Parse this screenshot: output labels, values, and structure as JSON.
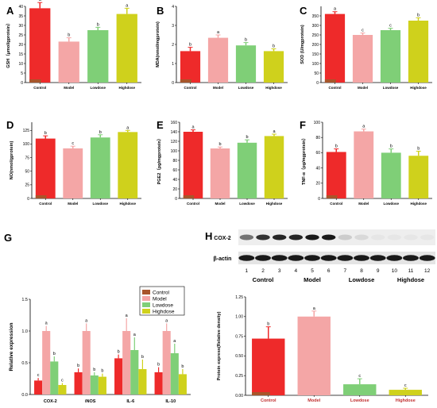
{
  "colors": {
    "Control": "#ee2a2a",
    "Model": "#f4a6a6",
    "Lowdose": "#7fcf77",
    "Highdose": "#cfd11c",
    "ControlDark": "#a8552a"
  },
  "chart_data": [
    {
      "id": "A",
      "type": "bar",
      "label": "A",
      "categories": [
        "Control",
        "Model",
        "Lowdose",
        "Highdose"
      ],
      "values": [
        39,
        21.5,
        27.5,
        36
      ],
      "errors": [
        3,
        2,
        1.5,
        3
      ],
      "letters": [
        "a",
        "b",
        "b",
        "a"
      ],
      "ylabel": "GSH（μmol/gprotein）",
      "ylim": [
        0,
        40
      ],
      "yticks": [
        0,
        5,
        10,
        15,
        20,
        25,
        30,
        35,
        40
      ]
    },
    {
      "id": "B",
      "type": "bar",
      "label": "B",
      "categories": [
        "Control",
        "Model",
        "Lowdose",
        "Highdose"
      ],
      "values": [
        1.65,
        2.35,
        1.95,
        1.65
      ],
      "errors": [
        0.2,
        0.15,
        0.15,
        0.12
      ],
      "letters": [
        "b",
        "a",
        "b",
        "b"
      ],
      "ylabel": "MDA(nmol/mgprotein)",
      "ylim": [
        0,
        4
      ],
      "yticks": [
        0,
        1,
        2,
        3,
        4
      ]
    },
    {
      "id": "C",
      "type": "bar",
      "label": "C",
      "categories": [
        "Control",
        "Model",
        "Lowdose",
        "Highdose"
      ],
      "values": [
        360,
        250,
        275,
        325
      ],
      "errors": [
        12,
        10,
        10,
        15
      ],
      "letters": [
        "a",
        "c",
        "c",
        "b"
      ],
      "ylabel": "SOD (U/mgprotein)",
      "ylim": [
        0,
        400
      ],
      "yticks": [
        0,
        50,
        100,
        150,
        200,
        250,
        300,
        350
      ]
    },
    {
      "id": "D",
      "type": "bar",
      "label": "D",
      "categories": [
        "Control",
        "Model",
        "Lowdose",
        "Highdose"
      ],
      "values": [
        110,
        92,
        112,
        122
      ],
      "errors": [
        5,
        4,
        5,
        3
      ],
      "letters": [
        "b",
        "c",
        "b",
        "a"
      ],
      "ylabel": "NO(nmol/gprotein)",
      "ylim": [
        0,
        140
      ],
      "yticks": [
        0,
        25,
        50,
        75,
        100,
        125
      ]
    },
    {
      "id": "E",
      "type": "bar",
      "label": "E",
      "categories": [
        "Control",
        "Model",
        "Lowdose",
        "Highdose"
      ],
      "values": [
        140,
        105,
        117,
        131
      ],
      "errors": [
        4,
        3,
        6,
        4
      ],
      "letters": [
        "a",
        "b",
        "b",
        "a"
      ],
      "ylabel": "PGE2（pg/mgprotein）",
      "ylim": [
        0,
        160
      ],
      "yticks": [
        0,
        20,
        40,
        60,
        80,
        100,
        120,
        140,
        160
      ]
    },
    {
      "id": "F",
      "type": "bar",
      "label": "F",
      "categories": [
        "Control",
        "Model",
        "Lowdose",
        "Highdose"
      ],
      "values": [
        61,
        88,
        60,
        56
      ],
      "errors": [
        4,
        3,
        5,
        6
      ],
      "letters": [
        "b",
        "a",
        "b",
        "b"
      ],
      "ylabel": "TNF-α（pg/mgprotein）",
      "ylim": [
        0,
        100
      ],
      "yticks": [
        0,
        20,
        40,
        60,
        80,
        100
      ]
    },
    {
      "id": "G",
      "type": "bar",
      "label": "G",
      "categories": [
        "COX-2",
        "iNOS",
        "IL-6",
        "IL-10"
      ],
      "series": [
        {
          "name": "Control",
          "values": [
            0.22,
            0.35,
            0.57,
            0.35
          ],
          "errors": [
            0.04,
            0.06,
            0.06,
            0.08
          ],
          "letters": [
            "c",
            "b",
            "b",
            "b"
          ]
        },
        {
          "name": "Model",
          "values": [
            1.0,
            1.0,
            1.0,
            1.0
          ],
          "errors": [
            0.08,
            0.12,
            0.2,
            0.12
          ],
          "letters": [
            "a",
            "a",
            "a",
            "a"
          ]
        },
        {
          "name": "Lowdose",
          "values": [
            0.52,
            0.3,
            0.7,
            0.65
          ],
          "errors": [
            0.08,
            0.05,
            0.2,
            0.15
          ],
          "letters": [
            "b",
            "b",
            "a",
            "a"
          ]
        },
        {
          "name": "Highdose",
          "values": [
            0.15,
            0.28,
            0.4,
            0.32
          ],
          "errors": [
            0.03,
            0.05,
            0.15,
            0.08
          ],
          "letters": [
            "c",
            "b",
            "b",
            "b"
          ]
        }
      ],
      "legend": [
        "Control",
        "Model",
        "Lowdose",
        "Highdose"
      ],
      "ylabel": "Relative expression",
      "ylim": [
        0,
        1.5
      ],
      "yticks": [
        0.0,
        0.5,
        1.0,
        1.5
      ]
    },
    {
      "id": "H",
      "type": "bar",
      "label": "H",
      "categories": [
        "Control",
        "Model",
        "Lowdose",
        "Highdose"
      ],
      "values": [
        0.72,
        1.0,
        0.14,
        0.07
      ],
      "errors": [
        0.15,
        0.07,
        0.07,
        0.02
      ],
      "letters": [
        "b",
        "a",
        "c",
        "c"
      ],
      "ylabel": "Protein express(Relative density)",
      "ylim": [
        0,
        1.25
      ],
      "yticks": [
        0.0,
        0.25,
        0.5,
        0.75,
        1.0,
        1.25
      ]
    }
  ],
  "blot": {
    "bands": [
      "COX-2",
      "β-actin"
    ],
    "lanes": [
      "1",
      "2",
      "3",
      "4",
      "5",
      "6",
      "7",
      "8",
      "9",
      "10",
      "11",
      "12"
    ],
    "groups": [
      "Control",
      "Model",
      "Lowdose",
      "Highdose"
    ],
    "cox2_intensity": [
      0.55,
      0.8,
      0.85,
      0.85,
      0.9,
      0.9,
      0.2,
      0.15,
      0.1,
      0.1,
      0.1,
      0.1
    ],
    "actin_intensity": [
      0.9,
      0.9,
      0.9,
      0.9,
      0.9,
      0.9,
      0.9,
      0.9,
      0.9,
      0.9,
      0.9,
      0.9
    ]
  }
}
